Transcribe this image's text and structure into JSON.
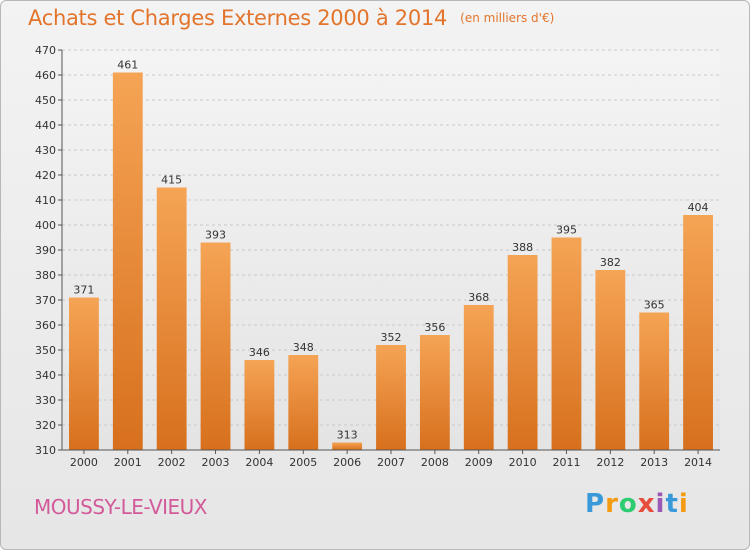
{
  "header": {
    "title": "Achats et Charges Externes 2000 à 2014",
    "subtitle": "(en milliers d'€)"
  },
  "footer": {
    "commune": "MOUSSY-LE-VIEUX",
    "logo_letters": [
      "P",
      "r",
      "o",
      "x",
      "i",
      "t",
      "i"
    ],
    "logo_colors": [
      "#3a9ad9",
      "#f39c12",
      "#2ecc71",
      "#e74c3c",
      "#9b59b6",
      "#3a9ad9",
      "#f39c12"
    ]
  },
  "chart_data": {
    "type": "bar",
    "title": "Achats et Charges Externes 2000 à 2014",
    "subtitle": "(en milliers d'€)",
    "categories": [
      "2000",
      "2001",
      "2002",
      "2003",
      "2004",
      "2005",
      "2006",
      "2007",
      "2008",
      "2009",
      "2010",
      "2011",
      "2012",
      "2013",
      "2014"
    ],
    "values": [
      371,
      461,
      415,
      393,
      346,
      348,
      313,
      352,
      356,
      368,
      388,
      395,
      382,
      365,
      404
    ],
    "ylim": [
      310,
      470
    ],
    "yticks": [
      310,
      320,
      330,
      340,
      350,
      360,
      370,
      380,
      390,
      400,
      410,
      420,
      430,
      440,
      450,
      460,
      470
    ],
    "grid": true,
    "bar_color_light": "#f5a455",
    "bar_color_dark": "#d7701d"
  }
}
